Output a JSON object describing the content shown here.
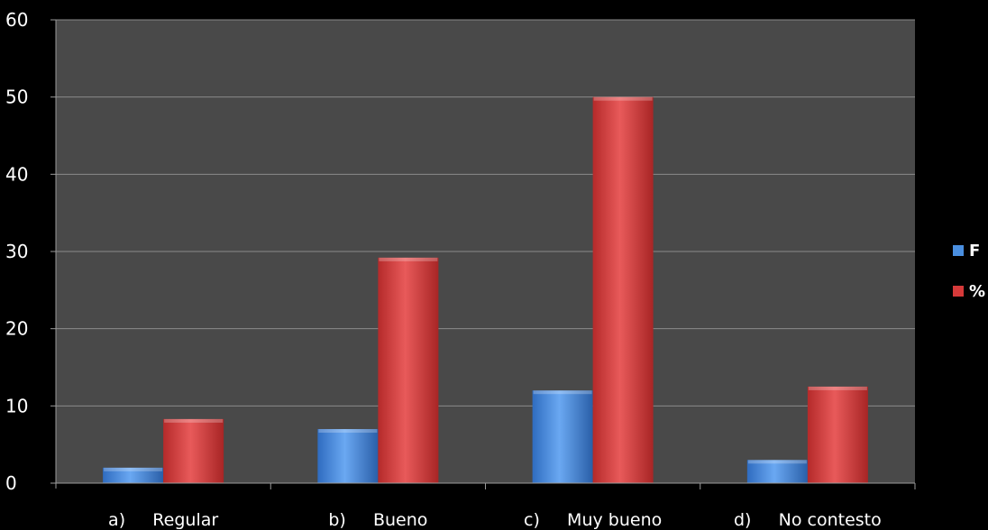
{
  "chart_data": {
    "type": "bar",
    "title": "",
    "xlabel": "",
    "ylabel": "",
    "categories": [
      "a)     Regular",
      "b)     Bueno",
      "c)     Muy bueno",
      "d)     No contesto"
    ],
    "series": [
      {
        "name": "F",
        "values": [
          2,
          7,
          12,
          3
        ],
        "color": "#4a8fe0"
      },
      {
        "name": "%",
        "values": [
          8.3,
          29.2,
          50,
          12.5
        ],
        "color": "#d63a3a"
      }
    ],
    "ylim": [
      0,
      60
    ],
    "yticks": [
      0,
      10,
      20,
      30,
      40,
      50,
      60
    ],
    "grid": true,
    "legend_position": "right",
    "colors": {
      "background": "#000000",
      "plot_area": "#494949",
      "gridline": "#8a8a8a"
    }
  }
}
